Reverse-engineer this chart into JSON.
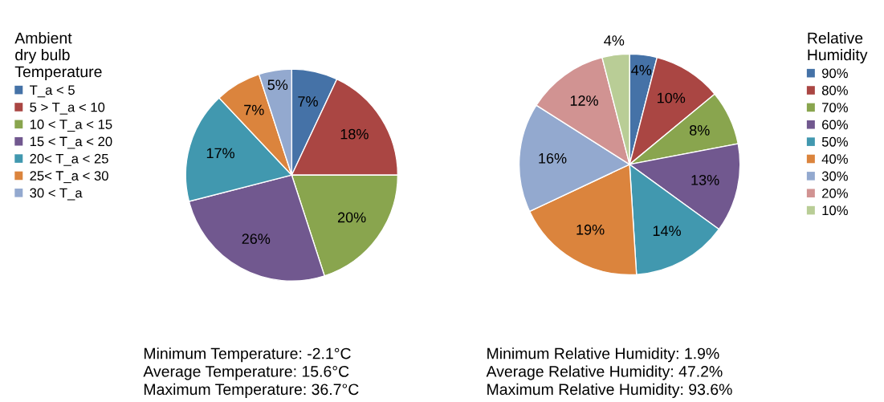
{
  "chart_data": [
    {
      "type": "pie",
      "legend_title": "Ambient\ndry bulb\nTemperature",
      "legend": "left",
      "categories": [
        "T_a < 5",
        "5 > T_a < 10",
        "10 < T_a < 15",
        "15 < T_a < 20",
        "20< T_a < 25",
        "25< T_a < 30",
        "30 < T_a"
      ],
      "values": [
        7,
        18,
        20,
        26,
        17,
        7,
        5
      ],
      "colors": [
        "#4572a7",
        "#aa4643",
        "#89a54e",
        "#71588f",
        "#4198af",
        "#db843d",
        "#93a9cf"
      ],
      "value_labels": [
        "7%",
        "18%",
        "20%",
        "26%",
        "17%",
        "7%",
        "5%"
      ],
      "annotations": [
        "Minimum Temperature: -2.1°C",
        "Average Temperature: 15.6°C",
        "Maximum Temperature: 36.7°C"
      ]
    },
    {
      "type": "pie",
      "legend_title": "Relative\nHumidity",
      "legend": "right",
      "categories": [
        "90%",
        "80%",
        "70%",
        "60%",
        "50%",
        "40%",
        "30%",
        "20%",
        "10%"
      ],
      "values": [
        4,
        10,
        8,
        13,
        14,
        19,
        16,
        12,
        4
      ],
      "colors": [
        "#4572a7",
        "#aa4643",
        "#89a54e",
        "#71588f",
        "#4198af",
        "#db843d",
        "#93a9cf",
        "#d19392",
        "#b9cd96"
      ],
      "value_labels": [
        "4%",
        "10%",
        "8%",
        "13%",
        "14%",
        "19%",
        "16%",
        "12%",
        "4%"
      ],
      "annotations": [
        "Minimum Relative Humidity: 1.9%",
        "Average Relative Humidity: 47.2%",
        "Maximum Relative Humidity: 93.6%"
      ]
    }
  ]
}
